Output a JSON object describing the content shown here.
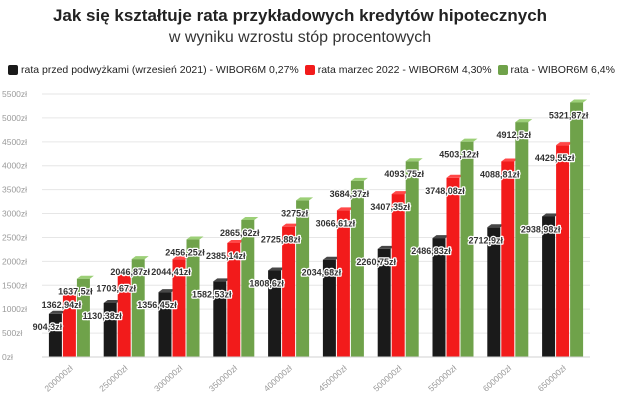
{
  "chart_data": {
    "type": "bar",
    "title": "Jak się kształtuje rata przykładowych kredytów hipotecznych",
    "subtitle": "w wyniku wzrostu stóp procentowych",
    "categories": [
      "200000zł",
      "250000zł",
      "300000zł",
      "350000zł",
      "400000zł",
      "450000zł",
      "500000zł",
      "550000zł",
      "600000zł",
      "650000zł"
    ],
    "series": [
      {
        "name": "rata przed podwyżkami (wrzesień 2021) - WIBOR6M 0,27%",
        "color": "#1a1a1a",
        "values": [
          904.3,
          1130.38,
          1356.45,
          1582.53,
          1808.6,
          2034.68,
          2260.75,
          2486.83,
          2712.9,
          2938.98
        ],
        "labels": [
          "904,3zł",
          "1130,38zł",
          "1356,45zł",
          "1582,53zł",
          "1808,6zł",
          "2034,68zł",
          "2260,75zł",
          "2486,83zł",
          "2712,9zł",
          "2938,98zł"
        ]
      },
      {
        "name": "rata marzec 2022 - WIBOR6M 4,30%",
        "color": "#f21b1b",
        "values": [
          1362.94,
          1703.67,
          2044.41,
          2385.14,
          2725.88,
          3066.61,
          3407.35,
          3748.08,
          4088.81,
          4429.55
        ],
        "labels": [
          "1362,94zł",
          "1703,67zł",
          "2044,41zł",
          "2385,14zł",
          "2725,88zł",
          "3066,61zł",
          "3407,35zł",
          "3748,08zł",
          "4088,81zł",
          "4429,55zł"
        ]
      },
      {
        "name": "rata - WIBOR6M 6,4%",
        "color": "#6fa24a",
        "values": [
          1637.5,
          2046.87,
          2456.25,
          2865.62,
          3275,
          3684.37,
          4093.75,
          4503.12,
          4912.5,
          5321.87
        ],
        "labels": [
          "1637,5zł",
          "2046,87zł",
          "2456,25zł",
          "2865,62zł",
          "3275zł",
          "3684,37zł",
          "4093,75zł",
          "4503,12zł",
          "4912,5zł",
          "5321,87zł"
        ]
      }
    ],
    "yticks": [
      "0zł",
      "500zł",
      "1000zł",
      "1500zł",
      "2000zł",
      "2500zł",
      "3000zł",
      "3500zł",
      "4000zł",
      "4500zł",
      "5000zł",
      "5500zł"
    ],
    "ylim": [
      0,
      5500
    ],
    "grid": true,
    "legend_position": "top"
  }
}
